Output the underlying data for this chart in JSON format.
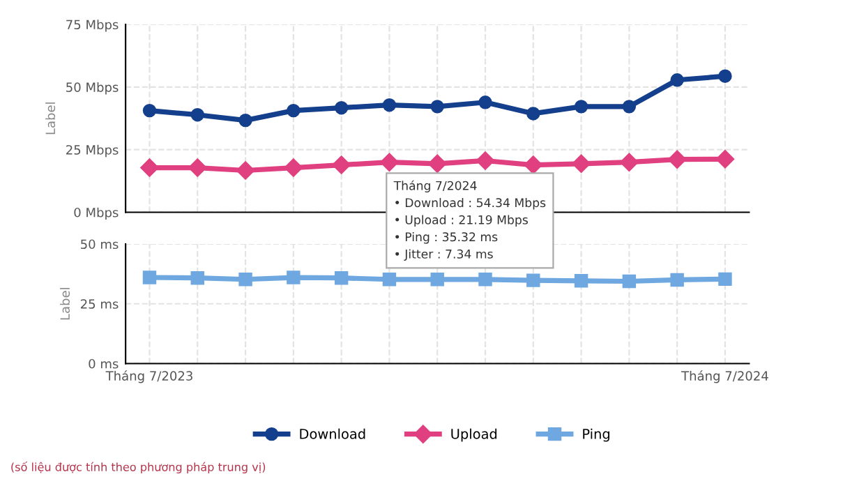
{
  "chart_data": [
    {
      "type": "line",
      "ylabel": "Label",
      "categories": [
        null,
        null,
        null,
        null,
        null,
        null,
        null,
        null,
        null,
        null,
        null,
        null,
        null
      ],
      "series": [
        {
          "name": "Download",
          "color": "#143f8c",
          "marker": "circle",
          "values": [
            40.6,
            38.9,
            36.7,
            40.6,
            41.7,
            42.8,
            42.2,
            43.9,
            39.4,
            42.2,
            42.2,
            52.8,
            54.34
          ]
        },
        {
          "name": "Upload",
          "color": "#e0407f",
          "marker": "diamond",
          "values": [
            17.8,
            17.8,
            16.7,
            17.8,
            18.9,
            20.0,
            19.4,
            20.6,
            18.9,
            19.4,
            20.0,
            21.1,
            21.19
          ]
        }
      ],
      "ylim": [
        0,
        75
      ],
      "yticks": [
        {
          "value": 0,
          "label": "0 Mbps"
        },
        {
          "value": 25,
          "label": "25 Mbps"
        },
        {
          "value": 50,
          "label": "50 Mbps"
        },
        {
          "value": 75,
          "label": "75 Mbps"
        }
      ],
      "grid": true,
      "legend": "bottom",
      "annotations": [
        "Tháng 7/2024",
        "• Download : 54.34 Mbps",
        "• Upload : 21.19 Mbps",
        "• Ping : 35.32 ms",
        "• Jitter : 7.34 ms"
      ]
    },
    {
      "type": "line",
      "ylabel": "Label",
      "categories": [
        "Tháng 7/2023",
        null,
        null,
        null,
        null,
        null,
        null,
        null,
        null,
        null,
        null,
        null,
        "Tháng 7/2024"
      ],
      "series": [
        {
          "name": "Ping",
          "color": "#6fa8e0",
          "marker": "square",
          "values": [
            36.0,
            35.8,
            35.2,
            36.0,
            35.8,
            35.2,
            35.2,
            35.2,
            34.8,
            34.6,
            34.4,
            35.0,
            35.32
          ]
        }
      ],
      "ylim": [
        0,
        50
      ],
      "yticks": [
        {
          "value": 0,
          "label": "0 ms"
        },
        {
          "value": 25,
          "label": "25 ms"
        },
        {
          "value": 50,
          "label": "50 ms"
        }
      ],
      "grid": true,
      "legend": "bottom",
      "annotations": [
        "(số liệu được tính theo phương pháp trung vị)"
      ]
    }
  ]
}
